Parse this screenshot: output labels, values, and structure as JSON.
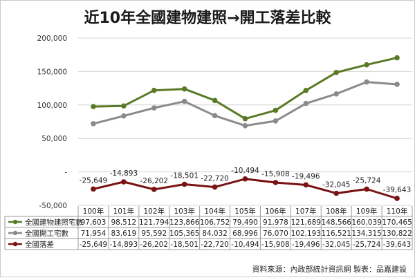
{
  "chart_data": {
    "type": "line",
    "title": "近10年全國建物建照→開工落差比較",
    "categories": [
      "100年",
      "101年",
      "102年",
      "103年",
      "104年",
      "105年",
      "106年",
      "107年",
      "108年",
      "109年",
      "110年"
    ],
    "series": [
      {
        "name": "全國建物建照宅數",
        "color": "#5a7a26",
        "values": [
          97603,
          98512,
          121794,
          123866,
          106752,
          79490,
          91978,
          121689,
          148566,
          160039,
          170465
        ],
        "display": [
          "97,603",
          "98,512",
          "121,794",
          "123,866",
          "106,752",
          "79,490",
          "91,978",
          "121,689",
          "148,566",
          "160,039",
          "170,465"
        ]
      },
      {
        "name": "全國開工宅數",
        "color": "#8a8a8a",
        "values": [
          71954,
          83619,
          95592,
          105365,
          84032,
          68996,
          76070,
          102193,
          116521,
          134315,
          130822
        ],
        "display": [
          "71,954",
          "83,619",
          "95,592",
          "105,365",
          "84,032",
          "68,996",
          "76,070",
          "102,193",
          "116,521",
          "134,315",
          "130,822"
        ]
      },
      {
        "name": "全國落差",
        "color": "#7a1212",
        "values": [
          -25649,
          -14893,
          -26202,
          -18501,
          -22720,
          -10494,
          -15908,
          -19496,
          -32045,
          -25724,
          -39643
        ],
        "display": [
          "-25,649",
          "-14,893",
          "-26,202",
          "-18,501",
          "-22,720",
          "-10,494",
          "-15,908",
          "-19,496",
          "-32,045",
          "-25,724",
          "-39,643"
        ]
      }
    ],
    "data_labels_series": "全國落差",
    "yticks": [
      200000,
      150000,
      100000,
      50000,
      0,
      -50000
    ],
    "ytick_labels": [
      "200,000",
      "150,000",
      "100,000",
      "50,000",
      "-",
      "-50,000"
    ],
    "ylim": [
      -50000,
      200000
    ],
    "grid": "horizontal",
    "legend": "data-table"
  },
  "footer": {
    "source": "資料來源：內政部統計資訊網  製表：品嘉建設"
  }
}
